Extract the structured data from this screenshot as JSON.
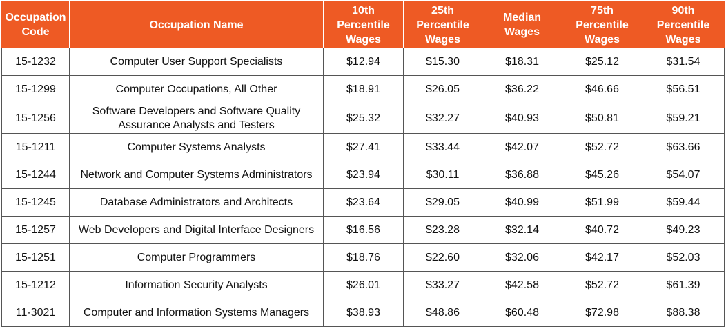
{
  "table": {
    "header_color": "#ee5a24",
    "columns": [
      [
        "Occupation",
        "Code"
      ],
      [
        "Occupation Name"
      ],
      [
        "10th",
        "Percentile",
        "Wages"
      ],
      [
        "25th",
        "Percentile",
        "Wages"
      ],
      [
        "Median",
        "Wages"
      ],
      [
        "75th",
        "Percentile",
        "Wages"
      ],
      [
        "90th",
        "Percentile",
        "Wages"
      ]
    ],
    "rows": [
      {
        "code": "15-1232",
        "name": [
          "Computer User Support Specialists"
        ],
        "p10": "$12.94",
        "p25": "$15.30",
        "median": "$18.31",
        "p75": "$25.12",
        "p90": "$31.54"
      },
      {
        "code": "15-1299",
        "name": [
          "Computer Occupations, All Other"
        ],
        "p10": "$18.91",
        "p25": "$26.05",
        "median": "$36.22",
        "p75": "$46.66",
        "p90": "$56.51"
      },
      {
        "code": "15-1256",
        "name": [
          "Software Developers and Software Quality",
          "Assurance Analysts and Testers"
        ],
        "p10": "$25.32",
        "p25": "$32.27",
        "median": "$40.93",
        "p75": "$50.81",
        "p90": "$59.21"
      },
      {
        "code": "15-1211",
        "name": [
          "Computer Systems Analysts"
        ],
        "p10": "$27.41",
        "p25": "$33.44",
        "median": "$42.07",
        "p75": "$52.72",
        "p90": "$63.66"
      },
      {
        "code": "15-1244",
        "name": [
          "Network and Computer Systems Administrators"
        ],
        "p10": "$23.94",
        "p25": "$30.11",
        "median": "$36.88",
        "p75": "$45.26",
        "p90": "$54.07"
      },
      {
        "code": "15-1245",
        "name": [
          "Database Administrators and Architects"
        ],
        "p10": "$23.64",
        "p25": "$29.05",
        "median": "$40.99",
        "p75": "$51.99",
        "p90": "$59.44"
      },
      {
        "code": "15-1257",
        "name": [
          "Web Developers and Digital Interface Designers"
        ],
        "p10": "$16.56",
        "p25": "$23.28",
        "median": "$32.14",
        "p75": "$40.72",
        "p90": "$49.23"
      },
      {
        "code": "15-1251",
        "name": [
          "Computer Programmers"
        ],
        "p10": "$18.76",
        "p25": "$22.60",
        "median": "$32.06",
        "p75": "$42.17",
        "p90": "$52.03"
      },
      {
        "code": "15-1212",
        "name": [
          "Information Security Analysts"
        ],
        "p10": "$26.01",
        "p25": "$33.27",
        "median": "$42.58",
        "p75": "$52.72",
        "p90": "$61.39"
      },
      {
        "code": "11-3021",
        "name": [
          "Computer and Information Systems Managers"
        ],
        "p10": "$38.93",
        "p25": "$48.86",
        "median": "$60.48",
        "p75": "$72.98",
        "p90": "$88.38"
      }
    ]
  }
}
